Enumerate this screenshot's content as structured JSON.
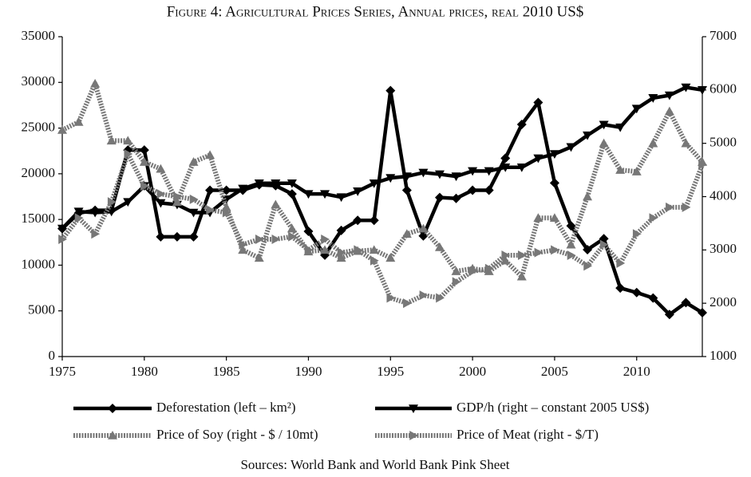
{
  "chart_data": {
    "type": "line",
    "title": "Figure 4: Agricultural Prices Series, Annual prices, real 2010 US$",
    "source": "Sources: World Bank and World Bank Pink Sheet",
    "x": [
      1975,
      1976,
      1977,
      1978,
      1979,
      1980,
      1981,
      1982,
      1983,
      1984,
      1985,
      1986,
      1987,
      1988,
      1989,
      1990,
      1991,
      1992,
      1993,
      1994,
      1995,
      1996,
      1997,
      1998,
      1999,
      2000,
      2001,
      2002,
      2003,
      2004,
      2005,
      2006,
      2007,
      2008,
      2009,
      2010,
      2011,
      2012,
      2013,
      2014
    ],
    "xlim": [
      1975,
      2014
    ],
    "xticks": [
      1975,
      1980,
      1985,
      1990,
      1995,
      2000,
      2005,
      2010
    ],
    "ylim": [
      0,
      35000
    ],
    "yticks": [
      0,
      5000,
      10000,
      15000,
      20000,
      25000,
      30000,
      35000
    ],
    "y2lim": [
      1000,
      7000
    ],
    "y2ticks": [
      1000,
      2000,
      3000,
      4000,
      5000,
      6000,
      7000
    ],
    "grid": false,
    "series": [
      {
        "name": "Deforestation (left – km²)",
        "color": "#000000",
        "marker": "diamond",
        "style": "solid",
        "values": [
          14000,
          15700,
          16000,
          16000,
          22600,
          22600,
          13100,
          13100,
          13100,
          18200,
          18200,
          18200,
          18800,
          18700,
          17800,
          13700,
          11100,
          13800,
          14900,
          14900,
          29100,
          18200,
          13200,
          17400,
          17300,
          18200,
          18200,
          21700,
          25400,
          27800,
          19000,
          14300,
          11700,
          12900,
          7500,
          7000,
          6400,
          4600,
          5900,
          4800
        ]
      },
      {
        "name": "GDP/h (right – constant 2005 US$)",
        "color": "#000000",
        "marker": "triangle-down",
        "style": "solid",
        "axis": "y2",
        "values": [
          3400,
          3720,
          3700,
          3720,
          3900,
          4200,
          3880,
          3850,
          3700,
          3700,
          3950,
          4150,
          4250,
          4250,
          4250,
          4050,
          4050,
          3990,
          4100,
          4250,
          4350,
          4380,
          4450,
          4420,
          4380,
          4480,
          4480,
          4550,
          4550,
          4720,
          4800,
          4930,
          5150,
          5350,
          5300,
          5650,
          5850,
          5900,
          6050,
          6000
        ]
      },
      {
        "name": "Price of Soy (right - $ / 10mt)",
        "color": "#777777",
        "marker": "triangle-up",
        "style": "dotted",
        "axis": "y2",
        "values": [
          5250,
          5400,
          6120,
          5050,
          5050,
          4650,
          4520,
          3900,
          4650,
          4780,
          3800,
          3000,
          2850,
          3850,
          3400,
          2970,
          3000,
          2850,
          2980,
          3000,
          2850,
          3300,
          3400,
          3050,
          2600,
          2650,
          2600,
          2800,
          2500,
          3600,
          3600,
          3100,
          4000,
          5000,
          4500,
          4470,
          5000,
          5600,
          5000,
          4650
        ]
      },
      {
        "name": "Price of Meat (right - $/T)",
        "color": "#777777",
        "marker": "triangle-right",
        "style": "dotted",
        "axis": "y2",
        "values": [
          3200,
          3600,
          3300,
          3900,
          4800,
          4200,
          4050,
          4000,
          3950,
          3750,
          3700,
          3100,
          3200,
          3200,
          3250,
          3000,
          3200,
          2950,
          3000,
          2800,
          2100,
          2000,
          2150,
          2100,
          2400,
          2600,
          2650,
          2900,
          2900,
          2950,
          3000,
          2900,
          2700,
          3100,
          2750,
          3300,
          3600,
          3800,
          3800,
          4600
        ]
      }
    ]
  }
}
